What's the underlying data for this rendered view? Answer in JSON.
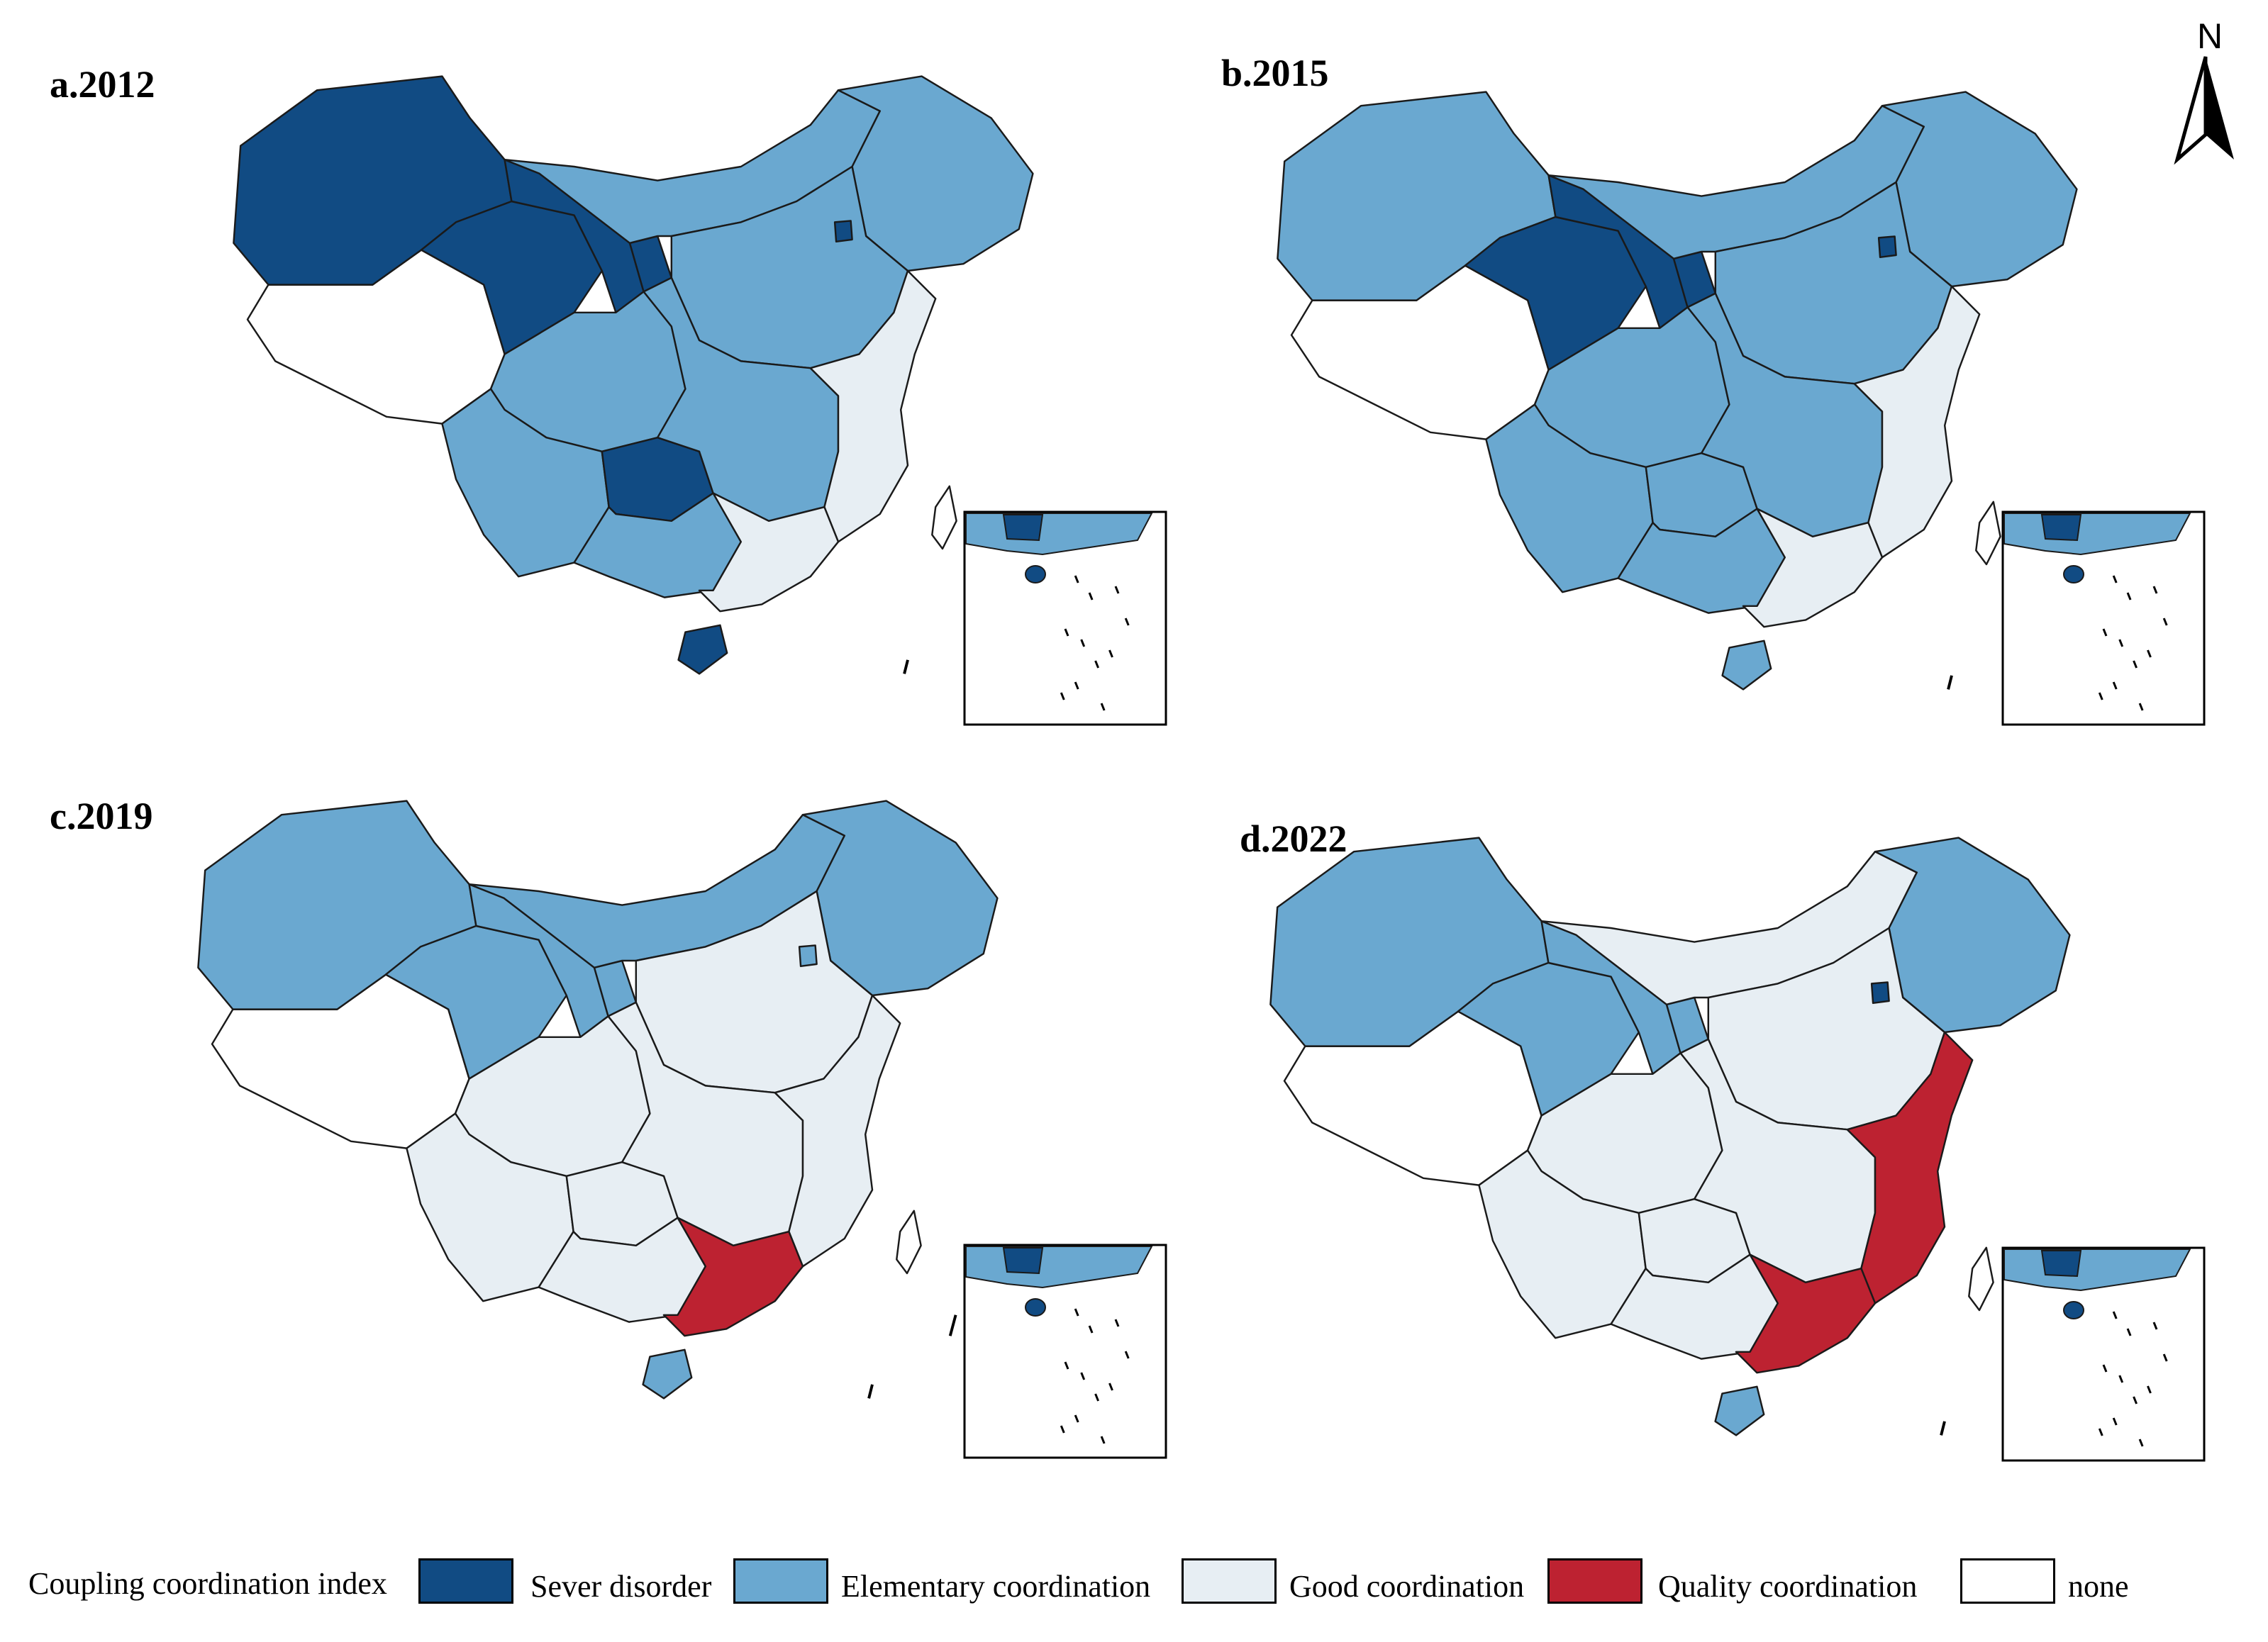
{
  "panels": [
    {
      "id": "a",
      "title": "a.2012"
    },
    {
      "id": "b",
      "title": "b.2015"
    },
    {
      "id": "c",
      "title": "c.2019"
    },
    {
      "id": "d",
      "title": "d.2022"
    }
  ],
  "north_arrow": {
    "label": "N"
  },
  "legend": {
    "title": "Coupling coordination index",
    "items": [
      {
        "label": "Sever disorder",
        "color": "#114b83"
      },
      {
        "label": "Elementary coordination",
        "color": "#6aa8d0"
      },
      {
        "label": "Good coordination",
        "color": "#e7eef3"
      },
      {
        "label": "Quality coordination",
        "color": "#bd2231"
      },
      {
        "label": "none",
        "color": "#ffffff"
      }
    ]
  },
  "colors": {
    "severe": "#114b83",
    "elementary": "#6aa8d0",
    "good": "#e7eef3",
    "quality": "#bd2231",
    "none": "#ffffff",
    "stroke": "#1a1a1a"
  },
  "region_classes": {
    "a": {
      "xinjiang": "severe",
      "tibet": "none",
      "qinghai": "severe",
      "gansu": "severe",
      "ningxia": "severe",
      "innermongolia": "elementary",
      "northeast": "elementary",
      "northchina": "elementary",
      "sichuan": "elementary",
      "yunnan": "elementary",
      "guizhou": "severe",
      "central": "elementary",
      "eastcoast": "good",
      "guangdong": "good",
      "guangxi": "elementary",
      "hainan": "severe",
      "beijing": "severe",
      "taiwan": "none"
    },
    "b": {
      "xinjiang": "elementary",
      "tibet": "none",
      "qinghai": "severe",
      "gansu": "severe",
      "ningxia": "severe",
      "innermongolia": "elementary",
      "northeast": "elementary",
      "northchina": "elementary",
      "sichuan": "elementary",
      "yunnan": "elementary",
      "guizhou": "elementary",
      "central": "elementary",
      "eastcoast": "good",
      "guangdong": "good",
      "guangxi": "elementary",
      "hainan": "elementary",
      "beijing": "severe",
      "taiwan": "none"
    },
    "c": {
      "xinjiang": "elementary",
      "tibet": "none",
      "qinghai": "elementary",
      "gansu": "elementary",
      "ningxia": "elementary",
      "innermongolia": "elementary",
      "northeast": "elementary",
      "northchina": "good",
      "sichuan": "good",
      "yunnan": "good",
      "guizhou": "good",
      "central": "good",
      "eastcoast": "good",
      "guangdong": "quality",
      "guangxi": "good",
      "hainan": "elementary",
      "beijing": "elementary",
      "taiwan": "none"
    },
    "d": {
      "xinjiang": "elementary",
      "tibet": "none",
      "qinghai": "elementary",
      "gansu": "elementary",
      "ningxia": "elementary",
      "innermongolia": "good",
      "northeast": "elementary",
      "northchina": "good",
      "sichuan": "good",
      "yunnan": "good",
      "guizhou": "good",
      "central": "good",
      "eastcoast": "quality",
      "guangdong": "quality",
      "guangxi": "good",
      "hainan": "elementary",
      "beijing": "severe",
      "taiwan": "none"
    }
  }
}
